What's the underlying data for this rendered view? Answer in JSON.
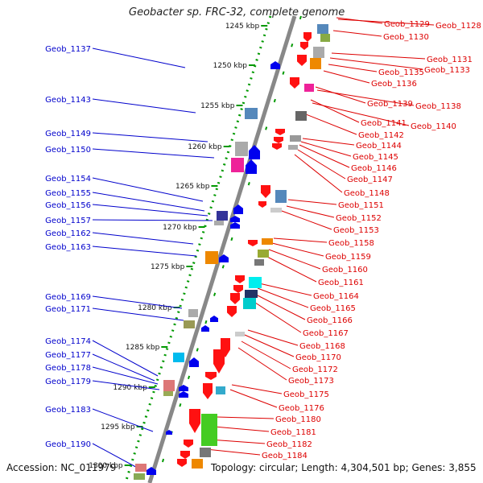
{
  "title": "Geobacter sp. FRC-32, complete genome",
  "accession_label": "Accession: NC_011979",
  "topology_label": "Topology: circular; Length: 4,304,501 bp; Genes: 3,855",
  "colors": {
    "left_label": "#0000cc",
    "right_label": "#dd0000",
    "backbone": "#888888",
    "ruler_dots": "#009900"
  },
  "ruler_ticks": [
    "1245 kbp",
    "1250 kbp",
    "1255 kbp",
    "1260 kbp",
    "1265 kbp",
    "1270 kbp",
    "1275 kbp",
    "1280 kbp",
    "1285 kbp",
    "1290 kbp",
    "1295 kbp",
    "1300 kbp"
  ],
  "left_genes": [
    "Geob_1137",
    "Geob_1143",
    "Geob_1149",
    "Geob_1150",
    "Geob_1154",
    "Geob_1155",
    "Geob_1156",
    "Geob_1157",
    "Geob_1162",
    "Geob_1163",
    "Geob_1169",
    "Geob_1171",
    "Geob_1174",
    "Geob_1177",
    "Geob_1178",
    "Geob_1179",
    "Geob_1183",
    "Geob_1190"
  ],
  "right_genes": [
    "Geob_1129",
    "Geob_1128",
    "Geob_1130",
    "Geob_1131",
    "Geob_1133",
    "Geob_1135",
    "Geob_1136",
    "Geob_1139",
    "Geob_1138",
    "Geob_1141",
    "Geob_1140",
    "Geob_1142",
    "Geob_1144",
    "Geob_1145",
    "Geob_1146",
    "Geob_1147",
    "Geob_1148",
    "Geob_1151",
    "Geob_1152",
    "Geob_1153",
    "Geob_1158",
    "Geob_1159",
    "Geob_1160",
    "Geob_1161",
    "Geob_1164",
    "Geob_1165",
    "Geob_1166",
    "Geob_1167",
    "Geob_1168",
    "Geob_1170",
    "Geob_1172",
    "Geob_1173",
    "Geob_1175",
    "Geob_1176",
    "Geob_1180",
    "Geob_1181",
    "Geob_1182",
    "Geob_1184"
  ]
}
